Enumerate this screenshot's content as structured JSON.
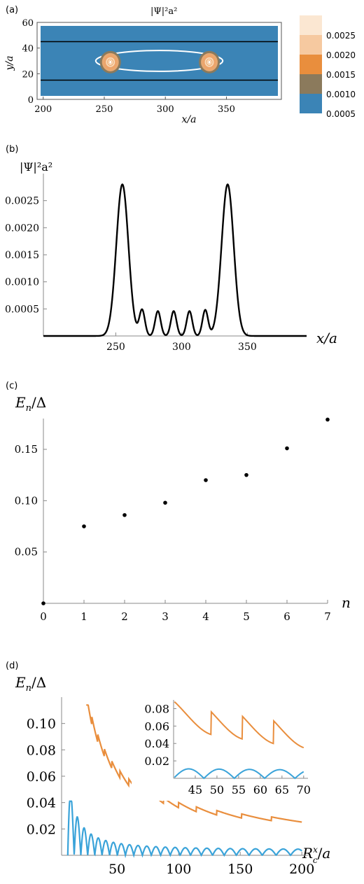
{
  "colors": {
    "blue": "#3b84b6",
    "orange": "#e98e3d",
    "cyan": "#3aa3d9",
    "contour_light": "#f7d7b5",
    "contour_mid": "#e9a870",
    "contour_dark": "#8b7a5c"
  },
  "chart_data": [
    {
      "type": "heatmap",
      "panel_label": "(a)",
      "title": "|Ψ|²a²",
      "xlabel": "x/a",
      "ylabel": "y/a",
      "xlim": [
        195,
        395
      ],
      "ylim": [
        0,
        60
      ],
      "xticks": [
        200,
        250,
        300,
        350
      ],
      "yticks": [
        0,
        20,
        40,
        60
      ],
      "tick_labels_x": [
        "200",
        "250",
        "300",
        "350"
      ],
      "tick_labels_y": [
        "0",
        "20",
        "40",
        "60"
      ],
      "hlines_y": [
        15,
        45
      ],
      "ellipse": {
        "cx": 295,
        "cy": 30,
        "rx": 52,
        "ry": 4.5
      },
      "peaks": [
        {
          "x": 255,
          "y": 29
        },
        {
          "x": 336,
          "y": 29
        }
      ],
      "colorbar": [
        "0.0025",
        "0.0020",
        "0.0015",
        "0.0010",
        "0.0005"
      ]
    },
    {
      "type": "line",
      "panel_label": "(b)",
      "ylabel": "|Ψ|²a²",
      "xlabel": "x/a",
      "xlim": [
        195,
        395
      ],
      "ylim": [
        0,
        0.003
      ],
      "xticks": [
        250,
        300,
        350
      ],
      "yticks": [
        0.0005,
        0.001,
        0.0015,
        0.002,
        0.0025
      ],
      "tick_labels_x": [
        "250",
        "300",
        "350"
      ],
      "tick_labels_y": [
        "0.0005",
        "0.0010",
        "0.0015",
        "0.0020",
        "0.0025"
      ],
      "peaks": [
        {
          "x": 255,
          "y": 0.0028,
          "width": 6.5
        },
        {
          "x": 270,
          "y": 0.00048,
          "width": 3
        },
        {
          "x": 282,
          "y": 0.00046,
          "width": 3
        },
        {
          "x": 294,
          "y": 0.00046,
          "width": 3
        },
        {
          "x": 306,
          "y": 0.00046,
          "width": 3
        },
        {
          "x": 318,
          "y": 0.00048,
          "width": 3
        },
        {
          "x": 335,
          "y": 0.0028,
          "width": 6.5
        }
      ]
    },
    {
      "type": "scatter",
      "panel_label": "(c)",
      "ylabel": "E_n/Δ",
      "xlabel": "n",
      "xlim": [
        0,
        7
      ],
      "ylim": [
        0,
        0.18
      ],
      "xticks": [
        0,
        1,
        2,
        3,
        4,
        5,
        6,
        7
      ],
      "yticks": [
        0.05,
        0.1,
        0.15
      ],
      "tick_labels_x": [
        "0",
        "1",
        "2",
        "3",
        "4",
        "5",
        "6",
        "7"
      ],
      "tick_labels_y": [
        "0.05",
        "0.10",
        "0.15"
      ],
      "x": [
        0,
        1,
        2,
        3,
        4,
        5,
        6,
        7
      ],
      "y": [
        0.0,
        0.075,
        0.086,
        0.098,
        0.12,
        0.125,
        0.151,
        0.179
      ]
    },
    {
      "type": "line",
      "panel_label": "(d)",
      "ylabel": "E_n/Δ",
      "xlabel": "R_c^x/a",
      "xlim": [
        5,
        205
      ],
      "ylim": [
        0,
        0.12
      ],
      "xticks": [
        50,
        100,
        150,
        200
      ],
      "yticks": [
        0.02,
        0.04,
        0.06,
        0.08,
        0.1
      ],
      "tick_labels_x": [
        "50",
        "100",
        "150",
        "200"
      ],
      "tick_labels_y": [
        "0.02",
        "0.04",
        "0.06",
        "0.08",
        "0.10"
      ],
      "series": [
        {
          "color": "orange",
          "x_start": 25,
          "x_end": 200,
          "description_fn": "decay_sawtooth_upper"
        },
        {
          "color": "cyan",
          "x_start": 10,
          "x_end": 200,
          "description_fn": "arches_lower"
        }
      ],
      "inset": {
        "xlim": [
          40,
          71
        ],
        "ylim": [
          0,
          0.09
        ],
        "xticks": [
          45,
          50,
          55,
          60,
          65,
          70
        ],
        "yticks": [
          0.02,
          0.04,
          0.06,
          0.08
        ],
        "tick_labels_x": [
          "45",
          "50",
          "55",
          "60",
          "65",
          "70"
        ],
        "tick_labels_y": [
          "0.02",
          "0.04",
          "0.06",
          "0.08"
        ]
      }
    }
  ]
}
